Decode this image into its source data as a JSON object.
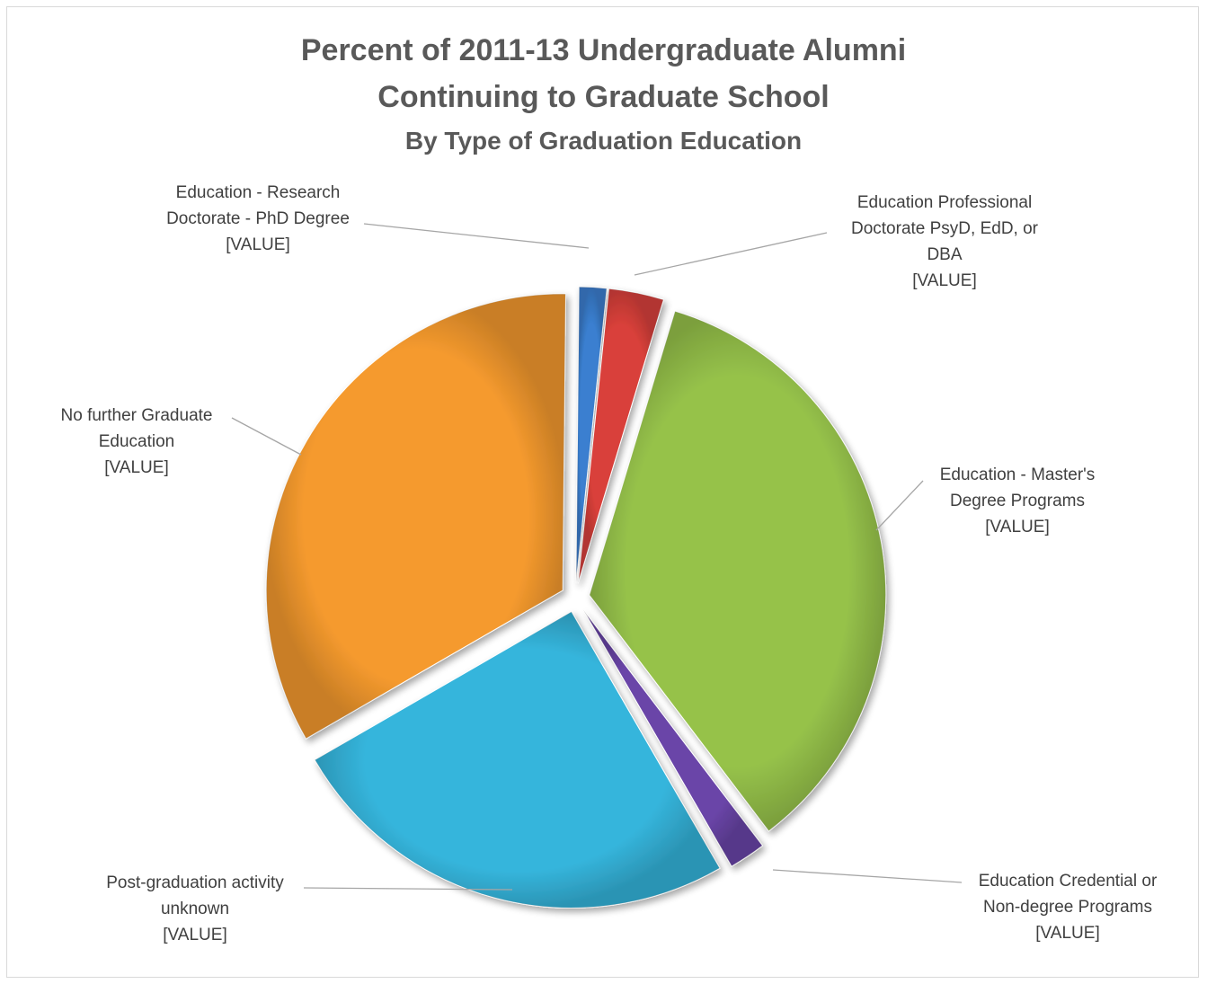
{
  "chart_data": {
    "type": "pie",
    "title": "Percent of 2011-13 Undergraduate Alumni",
    "title_line2": "Continuing to Graduate School",
    "subtitle": "By Type of Graduation Education",
    "legend": "none",
    "slices": [
      {
        "name": "Education - Research Doctorate - PhD Degree",
        "label_lines": [
          "Education - Research",
          "Doctorate - PhD Degree",
          "[VALUE]"
        ],
        "value": 1.5,
        "color": "#3a7fd0",
        "exploded": true
      },
      {
        "name": "Education Professional Doctorate PsyD, EdD, or DBA",
        "label_lines": [
          "Education Professional",
          "Doctorate PsyD, EdD, or",
          "DBA",
          "[VALUE]"
        ],
        "value": 3.0,
        "color": "#d9403a",
        "exploded": true
      },
      {
        "name": "Education - Master's Degree Programs",
        "label_lines": [
          "Education - Master's",
          "Degree Programs",
          "[VALUE]"
        ],
        "value": 35.0,
        "color": "#96c24a",
        "exploded": true
      },
      {
        "name": "Education Credential or Non-degree Programs",
        "label_lines": [
          "Education Credential or",
          "Non-degree Programs",
          "[VALUE]"
        ],
        "value": 2.0,
        "color": "#6a45a8",
        "exploded": true
      },
      {
        "name": "Post-graduation activity unknown",
        "label_lines": [
          "Post-graduation activity",
          "unknown",
          "[VALUE]"
        ],
        "value": 25.0,
        "color": "#35b5dc",
        "exploded": true
      },
      {
        "name": "No further Graduate Education",
        "label_lines": [
          "No further Graduate",
          "Education",
          "[VALUE]"
        ],
        "value": 33.5,
        "color": "#f59a2e",
        "exploded": true
      }
    ]
  }
}
